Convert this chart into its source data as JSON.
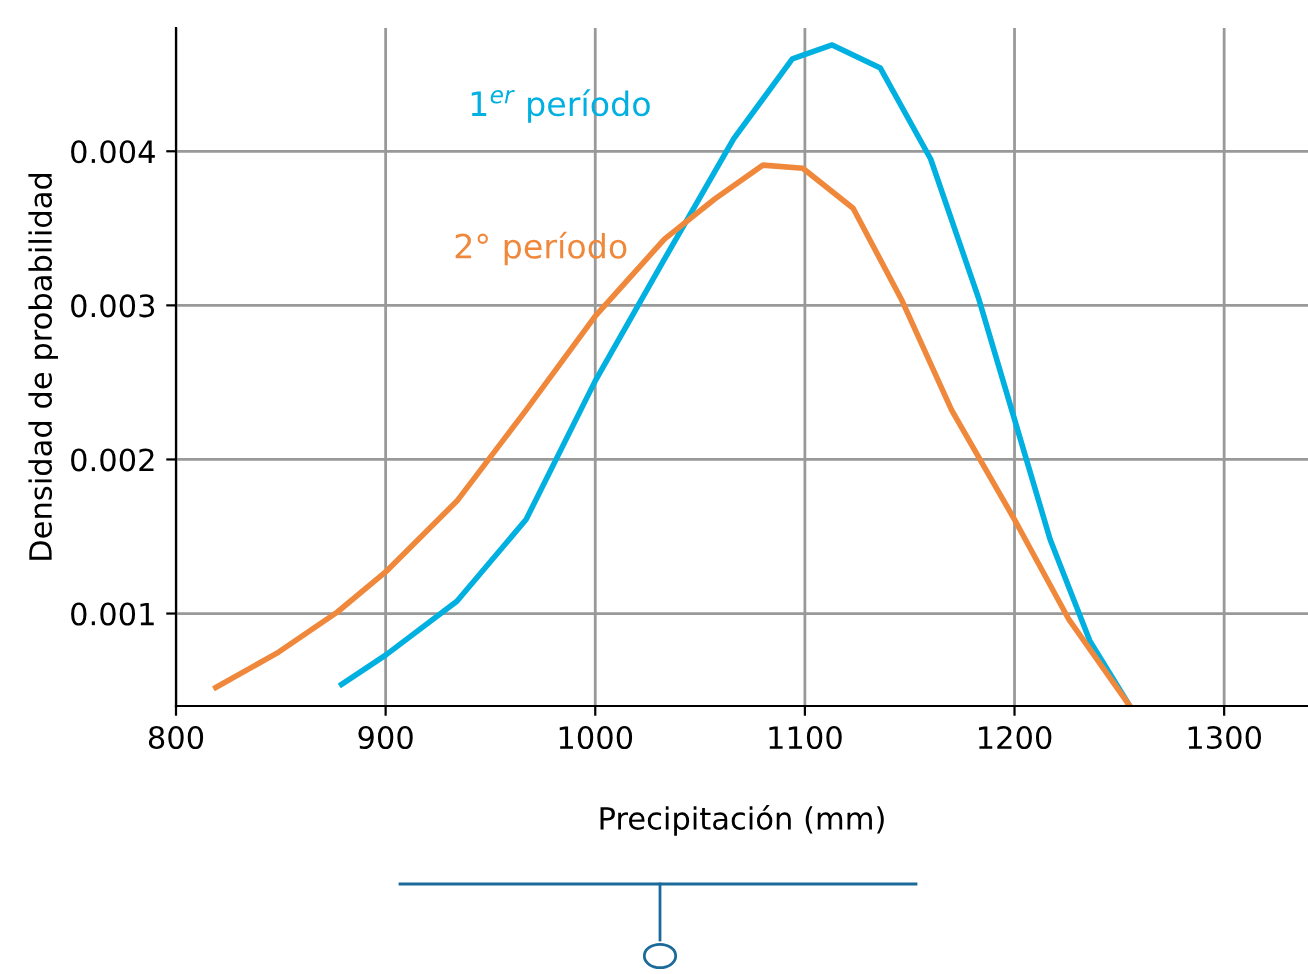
{
  "chart_data": {
    "type": "line",
    "xlabel": "Precipitación (mm)",
    "ylabel": "Densidad de probabilidad",
    "xlim": [
      800,
      1340
    ],
    "ylim": [
      0.0004,
      0.0048
    ],
    "xticks": [
      800,
      900,
      1000,
      1100,
      1200,
      1300
    ],
    "yticks": [
      0.001,
      0.002,
      0.003,
      0.004
    ],
    "grid": true,
    "legend": false,
    "marker": "none",
    "line_style": "solid",
    "series": [
      {
        "name": "1$^{er}$ período",
        "color": "#00b0e0",
        "x": [
          879,
          900,
          934,
          967,
          1000,
          1033,
          1066,
          1094,
          1113,
          1136,
          1160,
          1183,
          1200,
          1217,
          1236,
          1255
        ],
        "values": [
          0.00054,
          0.00073,
          0.00108,
          0.00161,
          0.00251,
          0.0033,
          0.00408,
          0.0046,
          0.00469,
          0.00454,
          0.00395,
          0.00304,
          0.00226,
          0.00148,
          0.00082,
          0.0004
        ]
      },
      {
        "name": "2° período",
        "color": "#f0883c",
        "x": [
          819,
          849,
          877,
          900,
          934,
          967,
          1000,
          1033,
          1057,
          1080,
          1099,
          1123,
          1146,
          1170,
          1200,
          1226,
          1255
        ],
        "values": [
          0.00052,
          0.00075,
          0.00101,
          0.00127,
          0.00173,
          0.00232,
          0.00293,
          0.00343,
          0.00369,
          0.00391,
          0.00389,
          0.00363,
          0.00304,
          0.00232,
          0.00161,
          0.00096,
          0.0004
        ]
      }
    ]
  }
}
